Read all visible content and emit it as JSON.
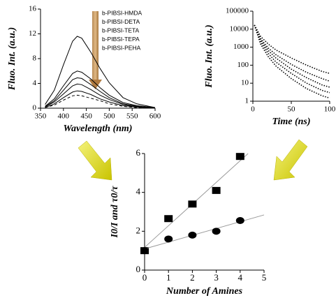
{
  "chart_data": [
    {
      "type": "line",
      "xlabel": "Wavelength (nm)",
      "ylabel": "Fluo. Int. (a.u.)",
      "x": [
        360,
        380,
        400,
        420,
        430,
        440,
        460,
        480,
        500,
        530,
        560,
        600
      ],
      "series": [
        {
          "name": null,
          "color": "#000000",
          "values": [
            0.6,
            2.9,
            7.0,
            10.8,
            11.6,
            11.3,
            9.0,
            6.4,
            4.1,
            1.7,
            0.7,
            0.1
          ]
        },
        {
          "name": "b-PIBSI-HMDA",
          "color": "#000000",
          "values": [
            0.3,
            1.5,
            3.6,
            5.6,
            6.0,
            5.8,
            4.7,
            3.3,
            2.1,
            0.9,
            0.4,
            0.1
          ]
        },
        {
          "name": "b-PIBSI-DETA",
          "color": "#000000",
          "values": [
            0.2,
            1.2,
            2.9,
            4.6,
            4.9,
            4.8,
            3.8,
            2.7,
            1.7,
            0.7,
            0.3,
            0.0
          ]
        },
        {
          "name": "b-PIBSI-TETA",
          "color": "#000000",
          "values": [
            0.2,
            1.0,
            2.3,
            3.6,
            3.9,
            3.8,
            3.0,
            2.1,
            1.4,
            0.6,
            0.2,
            0.0
          ]
        },
        {
          "name": "b-PIBSI-TEPA",
          "color": "#000000",
          "values": [
            0.1,
            0.7,
            1.7,
            2.6,
            2.8,
            2.7,
            2.2,
            1.5,
            1.0,
            0.4,
            0.2,
            0.0
          ]
        },
        {
          "name": "b-PIBSI-PEHA",
          "color": "#000000",
          "linestyle": "dashed",
          "values": [
            0.1,
            0.5,
            1.3,
            2.0,
            2.1,
            2.0,
            1.6,
            1.2,
            0.7,
            0.3,
            0.1,
            0.0
          ]
        }
      ],
      "xlim": [
        350,
        600
      ],
      "xticks": [
        350,
        400,
        450,
        500,
        550,
        600
      ],
      "ylim": [
        0,
        16
      ],
      "yticks": [
        0,
        4,
        8,
        12,
        16
      ]
    },
    {
      "type": "line",
      "xlabel": "Time (ns)",
      "ylabel": "Fluo. Int. (a.u.)",
      "log_y": true,
      "x": [
        2,
        10,
        20,
        30,
        50,
        70,
        90,
        100
      ],
      "series": [
        {
          "color": "#000000",
          "linestyle": "dotted",
          "values": [
            17000,
            4000,
            1500,
            700,
            250,
            100,
            45,
            35
          ]
        },
        {
          "color": "#000000",
          "linestyle": "dotted",
          "values": [
            17000,
            3000,
            900,
            380,
            110,
            40,
            18,
            13
          ]
        },
        {
          "color": "#000000",
          "linestyle": "dotted",
          "values": [
            17000,
            2500,
            650,
            250,
            60,
            20,
            8,
            6
          ]
        },
        {
          "color": "#000000",
          "linestyle": "dotted",
          "values": [
            17000,
            2000,
            450,
            150,
            35,
            10,
            4,
            3
          ]
        },
        {
          "color": "#000000",
          "linestyle": "dotted",
          "values": [
            17000,
            1500,
            300,
            90,
            18,
            5,
            2,
            1.5
          ]
        }
      ],
      "xlim": [
        0,
        100
      ],
      "xticks": [
        0,
        50,
        100
      ],
      "ylim": [
        1,
        100000
      ],
      "yticks": [
        1,
        10,
        100,
        1000,
        10000,
        100000
      ]
    },
    {
      "type": "scatter",
      "xlabel": "Number of Amines",
      "ylabel": "I0/I and τ0/τ",
      "trendline": true,
      "x": [
        0,
        1,
        2,
        3,
        4
      ],
      "series": [
        {
          "marker": "square",
          "color": "#000000",
          "values": [
            1,
            2.65,
            3.4,
            4.1,
            5.85
          ]
        },
        {
          "marker": "circle",
          "color": "#000000",
          "values": [
            1,
            1.6,
            1.8,
            2.0,
            2.55
          ]
        }
      ],
      "xlim": [
        0,
        5
      ],
      "xticks": [
        0,
        1,
        2,
        3,
        4,
        5
      ],
      "ylim": [
        0,
        6
      ],
      "yticks": [
        0,
        2,
        4,
        6
      ]
    }
  ]
}
